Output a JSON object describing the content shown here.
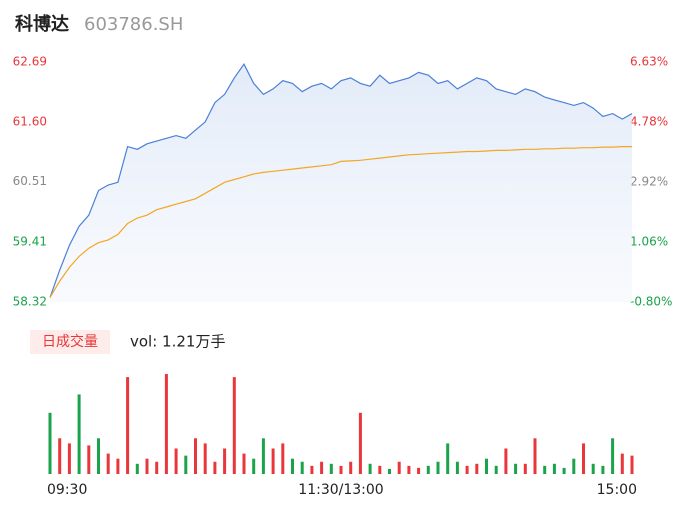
{
  "header": {
    "name": "科博达",
    "code": "603786.SH"
  },
  "chart_data": [
    {
      "type": "line",
      "x": [
        0,
        4,
        8,
        12,
        16,
        20,
        24,
        28,
        32,
        36,
        40,
        44,
        48,
        52,
        56,
        60,
        64,
        68,
        72,
        76,
        80,
        84,
        88,
        92,
        96,
        100,
        104,
        108,
        112,
        116,
        120,
        124,
        128,
        132,
        136,
        140,
        144,
        148,
        152,
        156,
        160,
        164,
        168,
        172,
        176,
        180,
        184,
        188,
        192,
        196,
        200,
        204,
        208,
        212,
        216,
        220,
        224,
        228,
        232,
        236,
        240
      ],
      "xlim": [
        0,
        240
      ],
      "xticks": [
        {
          "value": 0,
          "label": "09:30"
        },
        {
          "value": 120,
          "label": "11:30/13:00"
        },
        {
          "value": 240,
          "label": "15:00"
        }
      ],
      "ylim": [
        58.32,
        62.69
      ],
      "yticks": [
        62.69,
        {
          "value": 61.6,
          "label": "61.60"
        },
        60.51,
        59.41,
        58.32
      ],
      "ytick_colors": [
        "#e8363a",
        "#e8363a",
        "#888888",
        "#1aa34a",
        "#1aa34a"
      ],
      "y2lim": [
        -0.8,
        6.63
      ],
      "y2ticks": [
        {
          "value": 6.63,
          "label": "6.63%"
        },
        {
          "value": 4.78,
          "label": "4.78%"
        },
        {
          "value": 2.92,
          "label": "2.92%"
        },
        {
          "value": 1.06,
          "label": "1.06%"
        },
        {
          "value": -0.8,
          "label": "-0.80%"
        }
      ],
      "series": [
        {
          "color": "#4a7fd8",
          "values": [
            58.4,
            58.9,
            59.35,
            59.7,
            59.9,
            60.35,
            60.45,
            60.5,
            61.15,
            61.1,
            61.2,
            61.25,
            61.3,
            61.35,
            61.3,
            61.45,
            61.6,
            61.95,
            62.1,
            62.4,
            62.65,
            62.3,
            62.1,
            62.2,
            62.35,
            62.3,
            62.15,
            62.25,
            62.3,
            62.2,
            62.35,
            62.4,
            62.3,
            62.25,
            62.45,
            62.3,
            62.35,
            62.4,
            62.5,
            62.45,
            62.3,
            62.35,
            62.2,
            62.3,
            62.4,
            62.35,
            62.2,
            62.15,
            62.1,
            62.2,
            62.15,
            62.05,
            62.0,
            61.95,
            61.9,
            61.95,
            61.85,
            61.7,
            61.75,
            61.65,
            61.75
          ]
        },
        {
          "color": "#f5a623",
          "values": [
            58.4,
            58.7,
            58.95,
            59.15,
            59.3,
            59.4,
            59.45,
            59.55,
            59.75,
            59.85,
            59.9,
            60.0,
            60.05,
            60.1,
            60.15,
            60.2,
            60.3,
            60.4,
            60.5,
            60.55,
            60.6,
            60.65,
            60.68,
            60.7,
            60.72,
            60.74,
            60.76,
            60.78,
            60.8,
            60.82,
            60.88,
            60.89,
            60.9,
            60.92,
            60.94,
            60.96,
            60.98,
            61.0,
            61.01,
            61.02,
            61.03,
            61.04,
            61.05,
            61.06,
            61.06,
            61.07,
            61.08,
            61.08,
            61.09,
            61.1,
            61.1,
            61.11,
            61.11,
            61.12,
            61.12,
            61.13,
            61.13,
            61.14,
            61.14,
            61.15,
            61.15
          ]
        }
      ]
    },
    {
      "type": "bar",
      "title": "日成交量",
      "label": "vol: 1.21万手",
      "x": [
        0,
        4,
        8,
        12,
        16,
        20,
        24,
        28,
        32,
        36,
        40,
        44,
        48,
        52,
        56,
        60,
        64,
        68,
        72,
        76,
        80,
        84,
        88,
        92,
        96,
        100,
        104,
        108,
        112,
        116,
        120,
        124,
        128,
        132,
        136,
        140,
        144,
        148,
        152,
        156,
        160,
        164,
        168,
        172,
        176,
        180,
        184,
        188,
        192,
        196,
        200,
        204,
        208,
        212,
        216,
        220,
        224,
        228,
        232,
        236,
        240
      ],
      "xlim": [
        0,
        240
      ],
      "ylim": [
        0,
        100
      ],
      "values": [
        60,
        35,
        30,
        78,
        28,
        35,
        20,
        15,
        95,
        10,
        15,
        12,
        98,
        25,
        18,
        35,
        30,
        12,
        25,
        95,
        20,
        15,
        35,
        25,
        30,
        15,
        12,
        8,
        12,
        10,
        8,
        12,
        60,
        10,
        8,
        5,
        12,
        8,
        6,
        8,
        12,
        30,
        12,
        8,
        10,
        15,
        8,
        25,
        10,
        10,
        35,
        8,
        10,
        6,
        15,
        30,
        10,
        8,
        35,
        20,
        18
      ],
      "colors": [
        "#1aa34a",
        "#e8363a",
        "#e8363a",
        "#1aa34a",
        "#e8363a",
        "#1aa34a",
        "#e8363a",
        "#e8363a",
        "#e8363a",
        "#1aa34a",
        "#e8363a",
        "#e8363a",
        "#e8363a",
        "#e8363a",
        "#1aa34a",
        "#e8363a",
        "#e8363a",
        "#e8363a",
        "#e8363a",
        "#e8363a",
        "#e8363a",
        "#1aa34a",
        "#1aa34a",
        "#e8363a",
        "#e8363a",
        "#1aa34a",
        "#1aa34a",
        "#e8363a",
        "#e8363a",
        "#1aa34a",
        "#e8363a",
        "#e8363a",
        "#e8363a",
        "#1aa34a",
        "#e8363a",
        "#1aa34a",
        "#e8363a",
        "#e8363a",
        "#e8363a",
        "#1aa34a",
        "#1aa34a",
        "#1aa34a",
        "#1aa34a",
        "#e8363a",
        "#e8363a",
        "#1aa34a",
        "#1aa34a",
        "#e8363a",
        "#1aa34a",
        "#e8363a",
        "#e8363a",
        "#1aa34a",
        "#1aa34a",
        "#1aa34a",
        "#1aa34a",
        "#e8363a",
        "#1aa34a",
        "#1aa34a",
        "#1aa34a",
        "#e8363a",
        "#e8363a"
      ]
    }
  ]
}
